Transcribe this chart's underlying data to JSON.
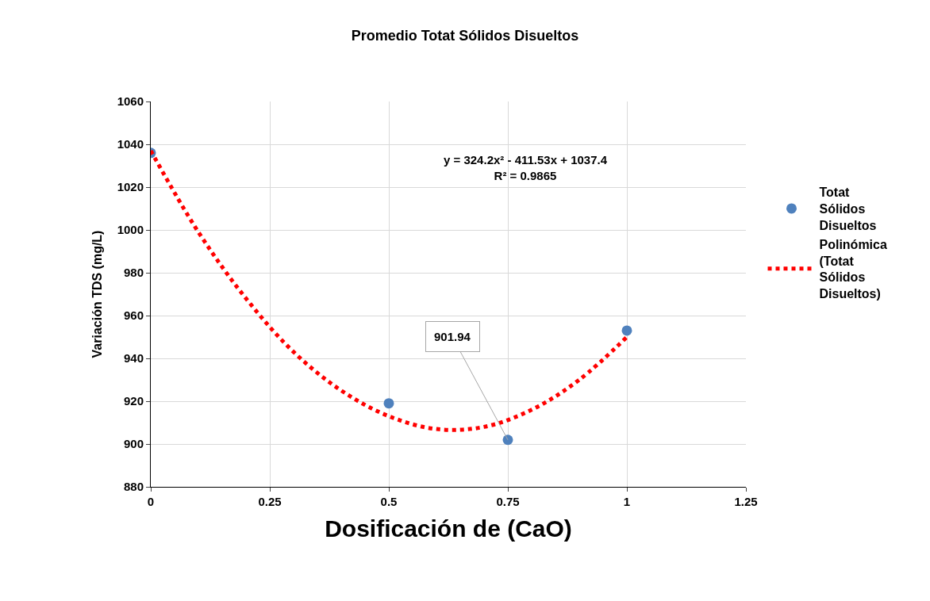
{
  "chart_data": {
    "type": "scatter",
    "title": "Promedio Totat Sólidos Disueltos",
    "xlabel": "Dosificación de (CaO)",
    "ylabel": "Variación TDS (mg/L)",
    "x": [
      0,
      0.5,
      0.75,
      1
    ],
    "series": [
      {
        "name": "Totat Sólidos Disueltos",
        "color": "#4f81bd",
        "marker": "circle",
        "values": [
          1036,
          919,
          901.94,
          953
        ],
        "value_labels": [
          null,
          null,
          "901.94",
          null
        ]
      },
      {
        "name": "Polinómica (Totat Sólidos Disueltos)",
        "color": "#ff0000",
        "type": "line",
        "marker": "none",
        "line_style": "dotted",
        "x": [
          0,
          0.1,
          0.2,
          0.3,
          0.4,
          0.5,
          0.6,
          0.7,
          0.8,
          0.9,
          1
        ],
        "values": [
          1037,
          999,
          968,
          943,
          925,
          913,
          907,
          908,
          916,
          930,
          950
        ]
      }
    ],
    "annotations": [
      "y = 324.2x² - 411.53x + 1037.4",
      "R² = 0.9865"
    ],
    "xlim": [
      0,
      1.25
    ],
    "xticks": [
      0,
      0.25,
      0.5,
      0.75,
      1,
      1.25
    ],
    "ylim": [
      880,
      1060
    ],
    "yticks": [
      880,
      900,
      920,
      940,
      960,
      980,
      1000,
      1020,
      1040,
      1060
    ],
    "grid": true,
    "legend": "right"
  }
}
